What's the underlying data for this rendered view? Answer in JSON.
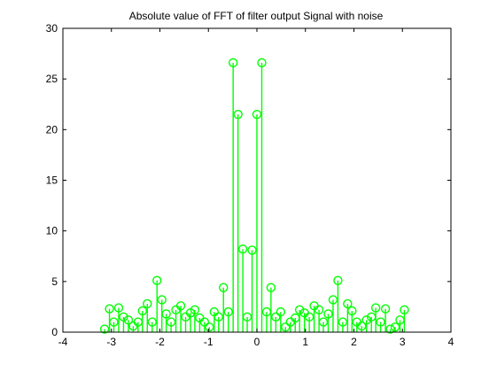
{
  "chart_data": {
    "type": "stem",
    "title": "Absolute value of FFT of filter output Signal with noise",
    "xlabel": "",
    "ylabel": "",
    "xlim": [
      -4,
      4
    ],
    "ylim": [
      0,
      30
    ],
    "x_ticks": [
      -4,
      -3,
      -2,
      -1,
      0,
      1,
      2,
      3,
      4
    ],
    "y_ticks": [
      0,
      5,
      10,
      15,
      20,
      25,
      30
    ],
    "grid": false,
    "marker": "circle",
    "color": "#00ff00",
    "x": [
      -3.14,
      -3.04,
      -2.95,
      -2.85,
      -2.75,
      -2.65,
      -2.55,
      -2.45,
      -2.36,
      -2.26,
      -2.16,
      -2.06,
      -1.96,
      -1.87,
      -1.77,
      -1.67,
      -1.57,
      -1.47,
      -1.37,
      -1.28,
      -1.18,
      -1.08,
      -0.98,
      -0.88,
      -0.79,
      -0.69,
      -0.59,
      -0.49,
      -0.39,
      -0.29,
      -0.2,
      -0.1,
      0.0,
      0.1,
      0.2,
      0.29,
      0.39,
      0.49,
      0.59,
      0.69,
      0.79,
      0.88,
      0.98,
      1.08,
      1.18,
      1.28,
      1.37,
      1.47,
      1.57,
      1.67,
      1.77,
      1.87,
      1.96,
      2.06,
      2.16,
      2.26,
      2.36,
      2.45,
      2.55,
      2.65,
      2.75,
      2.85,
      2.95,
      3.04
    ],
    "values": [
      0.3,
      2.3,
      1.0,
      2.4,
      1.5,
      1.2,
      0.6,
      1.0,
      2.1,
      2.8,
      1.0,
      5.1,
      3.2,
      1.8,
      1.0,
      2.2,
      2.6,
      1.5,
      1.9,
      2.2,
      1.4,
      1.0,
      0.5,
      2.0,
      1.5,
      4.4,
      2.0,
      26.6,
      21.5,
      8.2,
      1.5,
      8.1,
      21.5,
      26.6,
      2.0,
      4.4,
      1.5,
      2.0,
      0.5,
      1.0,
      1.4,
      2.2,
      1.9,
      1.5,
      2.6,
      2.2,
      1.0,
      1.8,
      3.2,
      5.1,
      1.0,
      2.8,
      2.1,
      1.0,
      0.6,
      1.2,
      1.5,
      2.4,
      1.0,
      2.3,
      0.3,
      0.5,
      1.2,
      2.2
    ]
  }
}
